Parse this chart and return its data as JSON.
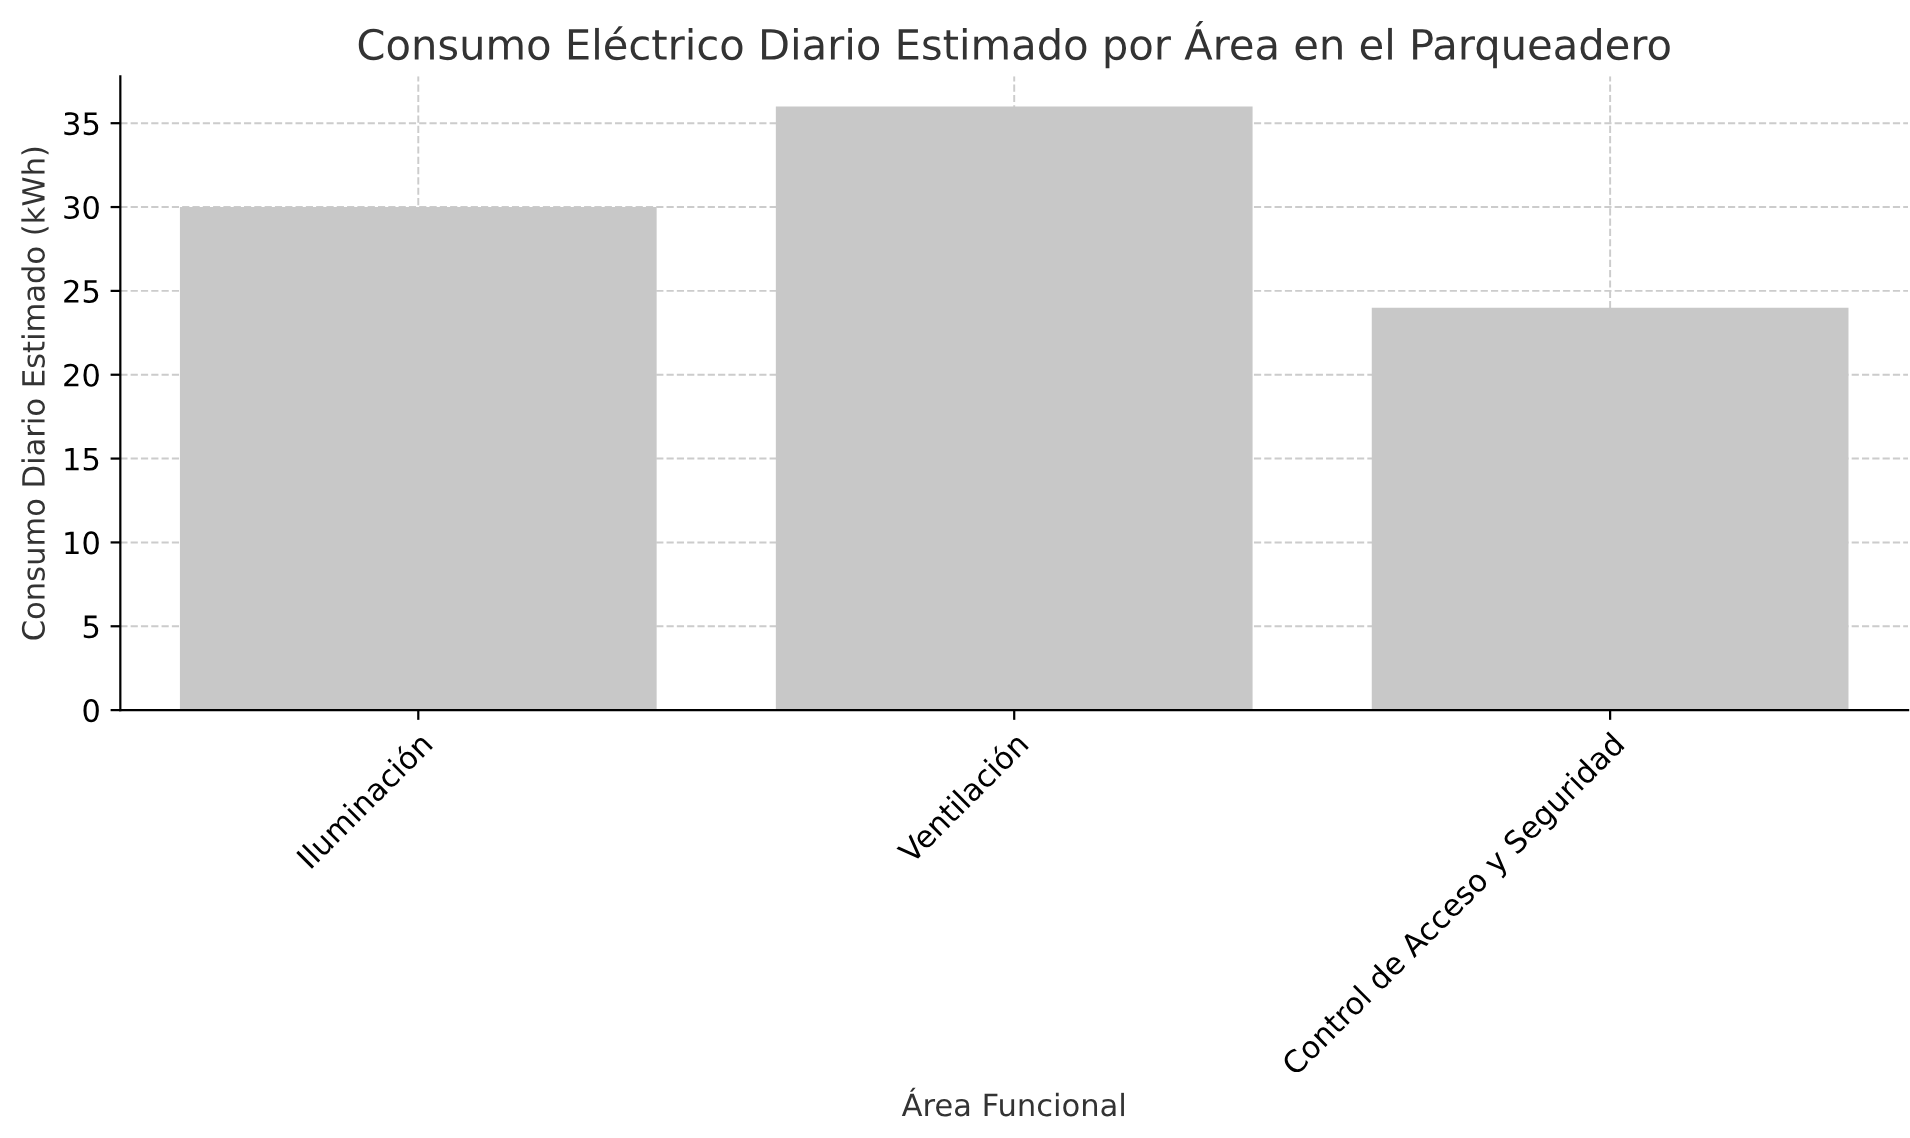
{
  "chart_data": {
    "type": "bar",
    "title": "Consumo Eléctrico Diario Estimado por Área en el Parqueadero",
    "xlabel": "Área Funcional",
    "ylabel": "Consumo Diario Estimado (kWh)",
    "categories": [
      "Iluminación",
      "Ventilación",
      "Control de Acceso y Seguridad"
    ],
    "values": [
      30,
      36,
      24
    ],
    "color": "#c8c8c8",
    "ylim": [
      0,
      37.8
    ],
    "yticks": [
      0,
      5,
      10,
      15,
      20,
      25,
      30,
      35
    ],
    "grid": true
  }
}
